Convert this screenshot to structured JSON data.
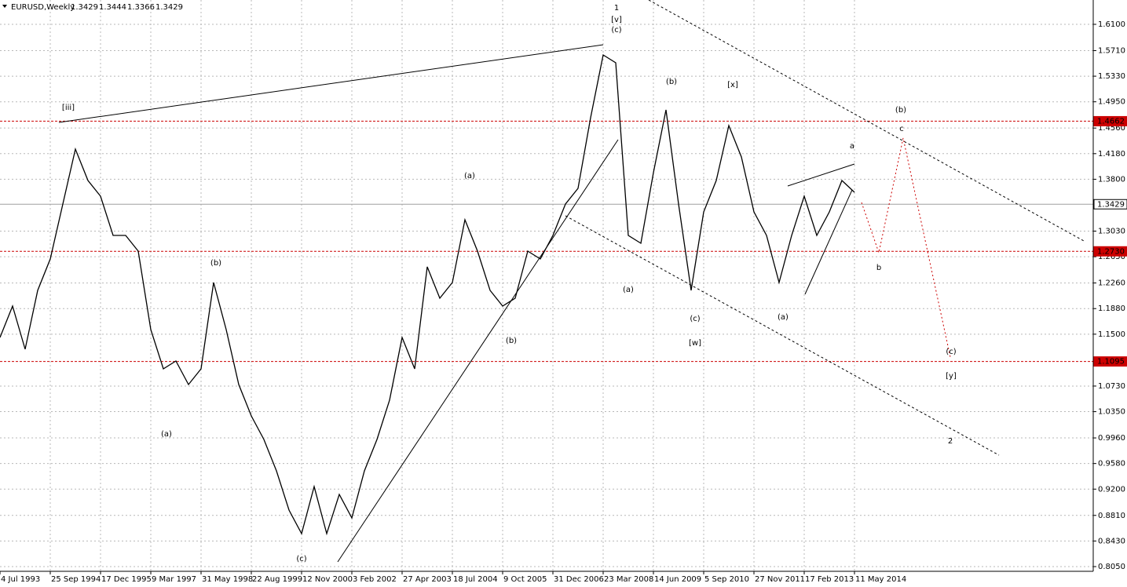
{
  "chart_data": {
    "type": "line",
    "title": "EURUSD,Weekly",
    "ohlc": [
      1.3429,
      1.3444,
      1.3366,
      1.3429
    ],
    "categories": [
      "4 Jul 1993",
      null,
      null,
      null,
      "25 Sep 1994",
      null,
      null,
      null,
      "17 Dec 1995",
      null,
      null,
      null,
      "9 Mar 1997",
      null,
      null,
      null,
      "31 May 1998",
      null,
      null,
      null,
      "22 Aug 1999",
      null,
      null,
      null,
      "12 Nov 2000",
      null,
      null,
      null,
      "3 Feb 2002",
      null,
      null,
      null,
      "27 Apr 2003",
      null,
      null,
      null,
      "18 Jul 2004",
      null,
      null,
      null,
      "9 Oct 2005",
      null,
      null,
      null,
      "31 Dec 2006",
      null,
      null,
      null,
      "23 Mar 2008",
      null,
      null,
      null,
      "14 Jun 2009",
      null,
      null,
      null,
      "5 Sep 2010",
      null,
      null,
      null,
      "27 Nov 2011",
      null,
      null,
      null,
      "17 Feb 2013",
      null,
      null,
      null,
      "11 May 2014"
    ],
    "series": [
      {
        "name": "EURUSD",
        "color": "#000000",
        "values": [
          1.1452,
          1.1918,
          1.1277,
          1.2151,
          1.2617,
          1.3432,
          1.4248,
          1.3782,
          1.3549,
          1.2966,
          1.2966,
          1.2733,
          1.1568,
          1.0986,
          1.1102,
          1.0753,
          1.0986,
          1.2267,
          1.1568,
          1.0753,
          1.0287,
          0.9937,
          0.9471,
          0.8889,
          0.8539,
          0.9238,
          0.8539,
          0.9122,
          0.8772,
          0.9471,
          0.9937,
          1.052,
          1.1452,
          1.0986,
          1.25,
          1.2034,
          1.2267,
          1.3199,
          1.2733,
          1.2151,
          1.1918,
          1.2034,
          1.2733,
          1.2617,
          1.2966,
          1.3432,
          1.3665,
          1.4714,
          1.5646,
          1.5529,
          1.2966,
          1.285,
          1.3898,
          1.483,
          1.3432,
          1.2151,
          1.3316,
          1.3782,
          1.4597,
          1.4131,
          1.3316,
          1.2966,
          1.2267,
          1.2966,
          1.3549,
          1.2966,
          1.3316,
          1.3782,
          1.3607
        ]
      }
    ],
    "ylim": [
      0.798,
      1.6461
    ],
    "yticks": [
      {
        "value": 1.61,
        "label": "1.6100"
      },
      {
        "value": 1.571,
        "label": "1.5710"
      },
      {
        "value": 1.533,
        "label": "1.5330"
      },
      {
        "value": 1.495,
        "label": "1.4950"
      },
      {
        "value": 1.456,
        "label": "1.4560"
      },
      {
        "value": 1.418,
        "label": "1.4180"
      },
      {
        "value": 1.38,
        "label": "1.3800"
      },
      {
        "value": 1.303,
        "label": "1.3030"
      },
      {
        "value": 1.265,
        "label": "1.2650"
      },
      {
        "value": 1.226,
        "label": "1.2260"
      },
      {
        "value": 1.188,
        "label": "1.1880"
      },
      {
        "value": 1.15,
        "label": "1.1500"
      },
      {
        "value": 1.073,
        "label": "1.0730"
      },
      {
        "value": 1.035,
        "label": "1.0350"
      },
      {
        "value": 0.996,
        "label": "0.9960"
      },
      {
        "value": 0.958,
        "label": "0.9580"
      },
      {
        "value": 0.92,
        "label": "0.9200"
      },
      {
        "value": 0.881,
        "label": "0.8810"
      },
      {
        "value": 0.843,
        "label": "0.8430"
      },
      {
        "value": 0.805,
        "label": "0.8050"
      }
    ],
    "levels": [
      {
        "value": 1.4662,
        "label": "1.4662",
        "color": "#cc0000"
      },
      {
        "value": 1.3429,
        "label": "1.3429",
        "color": "#a0a0a0"
      },
      {
        "value": 1.273,
        "label": "1.2730",
        "color": "#cc0000"
      },
      {
        "value": 1.1095,
        "label": "1.1095",
        "color": "#cc0000"
      }
    ],
    "grid": true,
    "annotations": [
      {
        "text": "[iii]",
        "color": "#d01010"
      },
      {
        "text": "(a)",
        "color": "#2e8b2e"
      },
      {
        "text": "(b)",
        "color": "#2e8b2e"
      },
      {
        "text": "(c)",
        "color": "#2e8b2e"
      },
      {
        "text": "(a)",
        "color": "#2e8b2e"
      },
      {
        "text": "(b)",
        "color": "#2e8b2e"
      },
      {
        "text": "1",
        "color": "#1010c0"
      },
      {
        "text": "[v]",
        "color": "#d01010"
      },
      {
        "text": "(c)",
        "color": "#2e8b2e"
      },
      {
        "text": "(a)",
        "color": "#2e8b2e"
      },
      {
        "text": "(b)",
        "color": "#2e8b2e"
      },
      {
        "text": "(c)",
        "color": "#2e8b2e"
      },
      {
        "text": "[w]",
        "color": "#d01010"
      },
      {
        "text": "[x]",
        "color": "#d01010"
      },
      {
        "text": "(a)",
        "color": "#2e8b2e"
      },
      {
        "text": "a",
        "color": "#1010c0"
      },
      {
        "text": "(b)",
        "color": "#2e8b2e"
      },
      {
        "text": "c",
        "color": "#1010c0"
      },
      {
        "text": "b",
        "color": "#1010c0"
      },
      {
        "text": "(c)",
        "color": "#2e8b2e"
      },
      {
        "text": "[y]",
        "color": "#d01010"
      },
      {
        "text": "2",
        "color": "#1010c0"
      }
    ]
  }
}
